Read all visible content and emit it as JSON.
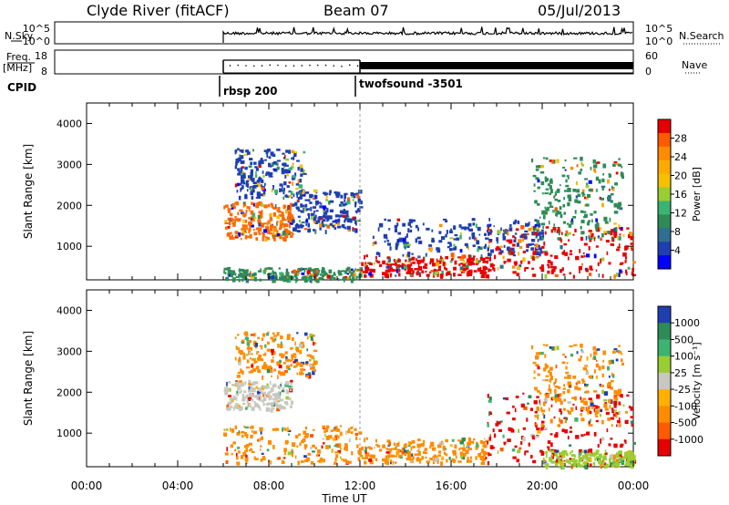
{
  "header": {
    "station": "Clyde River (fitACF)",
    "beam": "Beam 07",
    "date": "05/Jul/2013"
  },
  "strip_nsky": {
    "left_label": "N.Sky",
    "right_label": "N.Search",
    "left_ticks": [
      "10^5",
      "10^0"
    ],
    "right_ticks": [
      "10^5",
      "10^0"
    ]
  },
  "strip_freq": {
    "left_label_line1": "Freq.",
    "left_label_line2": "[MHz]",
    "right_label": "Nave",
    "left_ticks": [
      "18",
      "8"
    ],
    "right_ticks": [
      "60",
      "0"
    ]
  },
  "cpid": {
    "label": "CPID",
    "programs": [
      {
        "name": "rbsp 200",
        "start_hour": 6.0
      },
      {
        "name": "twofsound -3501",
        "start_hour": 12.0
      }
    ]
  },
  "chart_data": [
    {
      "type": "heatmap",
      "name": "power-panel",
      "ylabel": "Slant Range [km]",
      "xlabel": "",
      "x_range_hours": [
        0,
        24
      ],
      "ylim": [
        180,
        4500
      ],
      "y_ticks": [
        1000,
        2000,
        3000,
        4000
      ],
      "colorbar": {
        "label": "Power [dB]",
        "ticks": [
          "28",
          "24",
          "20",
          "16",
          "12",
          "8",
          "4"
        ],
        "colors": [
          "#e60000",
          "#ff5a00",
          "#ff8c00",
          "#ffaa00",
          "#f5c000",
          "#9acd32",
          "#3cb371",
          "#2e8b57",
          "#2f6f8f",
          "#1f3fb0",
          "#0000ff"
        ]
      },
      "echo_regions": [
        {
          "t": [
            6.0,
            12.0
          ],
          "range": [
            200,
            500
          ],
          "color": "#2e8b57"
        },
        {
          "t": [
            6.0,
            9.0
          ],
          "range": [
            1200,
            2100
          ],
          "color": "#ff6a00"
        },
        {
          "t": [
            6.5,
            9.5
          ],
          "range": [
            2200,
            3400
          ],
          "color": "#1f3fb0"
        },
        {
          "t": [
            9.0,
            12.0
          ],
          "range": [
            1400,
            2400
          ],
          "color": "#1f3fb0"
        },
        {
          "t": [
            12.0,
            17.5
          ],
          "range": [
            300,
            800
          ],
          "color": "#e60000"
        },
        {
          "t": [
            17.5,
            24.0
          ],
          "range": [
            300,
            1500
          ],
          "color": "#e60000"
        },
        {
          "t": [
            12.5,
            20.0
          ],
          "range": [
            800,
            1700
          ],
          "color": "#1f3fb0"
        },
        {
          "t": [
            19.5,
            23.5
          ],
          "range": [
            1200,
            3200
          ],
          "color": "#2e8b57"
        }
      ]
    },
    {
      "type": "heatmap",
      "name": "velocity-panel",
      "ylabel": "Slant Range [km]",
      "xlabel": "Time UT",
      "x_range_hours": [
        0,
        24
      ],
      "x_tick_labels": [
        "00:00",
        "04:00",
        "08:00",
        "12:00",
        "16:00",
        "20:00",
        "00:00"
      ],
      "ylim": [
        180,
        4500
      ],
      "y_ticks": [
        1000,
        2000,
        3000,
        4000
      ],
      "colorbar": {
        "label": "Velocity [m s⁻¹]",
        "ticks": [
          "1000",
          "500",
          "100",
          "25",
          "-25",
          "-100",
          "-500",
          "-1000"
        ],
        "colors": [
          "#1f3fb0",
          "#2e8b57",
          "#3cb371",
          "#9acd32",
          "#c8c8c0",
          "#ffb000",
          "#ff8c00",
          "#ff5a00",
          "#e60000"
        ]
      },
      "echo_regions": [
        {
          "t": [
            6.0,
            12.0
          ],
          "range": [
            300,
            1200
          ],
          "color": "#ff8c00"
        },
        {
          "t": [
            6.0,
            9.0
          ],
          "range": [
            1600,
            2300
          ],
          "color": "#c8c8c0"
        },
        {
          "t": [
            6.5,
            10.0
          ],
          "range": [
            2400,
            3500
          ],
          "color": "#ff8c00"
        },
        {
          "t": [
            12.0,
            17.5
          ],
          "range": [
            300,
            900
          ],
          "color": "#ff8c00"
        },
        {
          "t": [
            17.5,
            24.0
          ],
          "range": [
            300,
            2000
          ],
          "color": "#e60000"
        },
        {
          "t": [
            20.0,
            24.0
          ],
          "range": [
            200,
            600
          ],
          "color": "#9acd32"
        },
        {
          "t": [
            19.5,
            23.5
          ],
          "range": [
            1200,
            3200
          ],
          "color": "#ff8c00"
        }
      ]
    }
  ]
}
